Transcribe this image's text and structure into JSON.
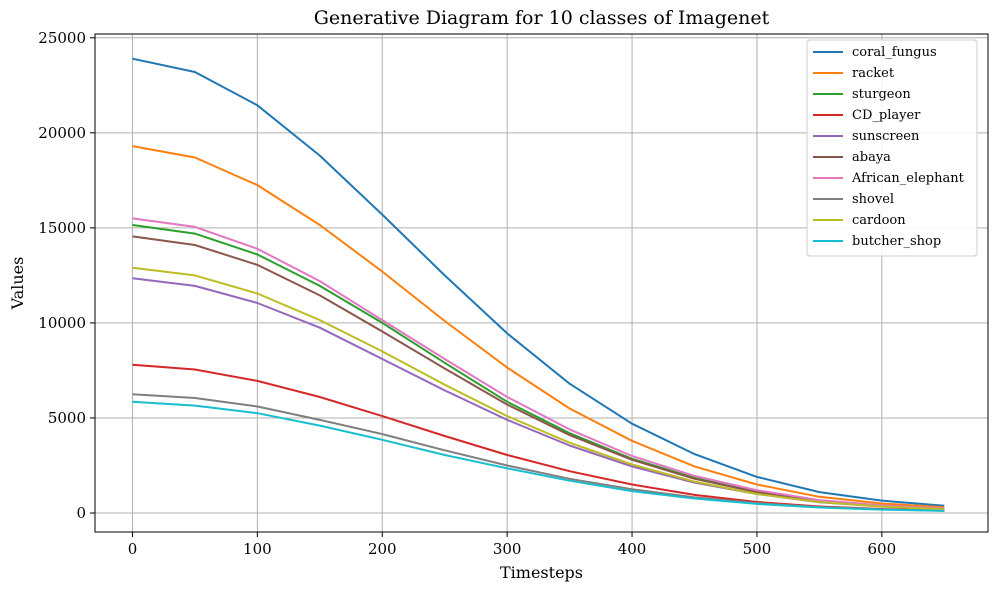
{
  "chart_data": {
    "type": "line",
    "title": "Generative Diagram for 10 classes of Imagenet",
    "xlabel": "Timesteps",
    "ylabel": "Values",
    "xlim": [
      -30,
      685
    ],
    "ylim": [
      -1000,
      25200
    ],
    "xticks": [
      0,
      100,
      200,
      300,
      400,
      500,
      600
    ],
    "yticks": [
      0,
      5000,
      10000,
      15000,
      20000,
      25000
    ],
    "grid": true,
    "legend_position": "top-right",
    "x": [
      0,
      50,
      100,
      150,
      200,
      250,
      300,
      350,
      400,
      450,
      500,
      550,
      600,
      650
    ],
    "series": [
      {
        "name": "coral_fungus",
        "color": "#1f77b4",
        "values": [
          23900,
          23200,
          21450,
          18800,
          15700,
          12500,
          9450,
          6800,
          4700,
          3100,
          1900,
          1100,
          650,
          380
        ]
      },
      {
        "name": "racket",
        "color": "#ff7f0e",
        "values": [
          19300,
          18700,
          17250,
          15150,
          12700,
          10100,
          7650,
          5500,
          3800,
          2450,
          1500,
          850,
          500,
          300
        ]
      },
      {
        "name": "sturgeon",
        "color": "#2ca02c",
        "values": [
          15150,
          14700,
          13600,
          11950,
          10000,
          7900,
          5850,
          4200,
          2850,
          1850,
          1100,
          620,
          360,
          210
        ]
      },
      {
        "name": "CD_player",
        "color": "#d62728",
        "values": [
          7800,
          7550,
          6950,
          6100,
          5100,
          4050,
          3050,
          2200,
          1500,
          950,
          580,
          340,
          210,
          130
        ]
      },
      {
        "name": "sunscreen",
        "color": "#9467bd",
        "values": [
          12350,
          11950,
          11050,
          9750,
          8100,
          6450,
          4900,
          3550,
          2450,
          1600,
          1000,
          570,
          340,
          200
        ]
      },
      {
        "name": "abaya",
        "color": "#8c564b",
        "values": [
          14550,
          14100,
          13050,
          11450,
          9550,
          7600,
          5700,
          4100,
          2800,
          1800,
          1100,
          630,
          370,
          220
        ]
      },
      {
        "name": "African_elephant",
        "color": "#e377c2",
        "values": [
          15500,
          15050,
          13900,
          12200,
          10150,
          8100,
          6100,
          4400,
          3000,
          1950,
          1200,
          680,
          400,
          240
        ]
      },
      {
        "name": "shovel",
        "color": "#7f7f7f",
        "values": [
          6250,
          6050,
          5600,
          4900,
          4150,
          3300,
          2500,
          1800,
          1250,
          820,
          520,
          310,
          190,
          120
        ]
      },
      {
        "name": "cardoon",
        "color": "#bcbd22",
        "values": [
          12900,
          12500,
          11550,
          10150,
          8500,
          6750,
          5100,
          3700,
          2550,
          1650,
          1000,
          580,
          340,
          200
        ]
      },
      {
        "name": "butcher_shop",
        "color": "#17becf",
        "values": [
          5850,
          5650,
          5250,
          4600,
          3850,
          3050,
          2350,
          1700,
          1150,
          760,
          480,
          290,
          180,
          110
        ]
      }
    ]
  }
}
